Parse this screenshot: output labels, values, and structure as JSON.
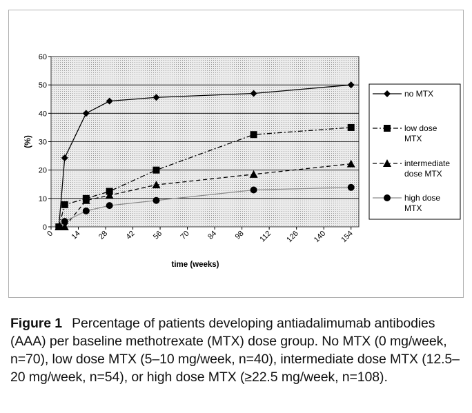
{
  "chart_data": {
    "type": "line",
    "title": "",
    "xlabel": "time (weeks)",
    "ylabel": "(%)",
    "xlim": [
      0,
      158
    ],
    "ylim": [
      0,
      60
    ],
    "xticks": [
      0,
      14,
      28,
      42,
      56,
      70,
      84,
      98,
      112,
      126,
      140,
      154
    ],
    "yticks": [
      0,
      10,
      20,
      30,
      40,
      50,
      60
    ],
    "grid": "dotted",
    "legend_position": "right",
    "series": [
      {
        "name": "no MTX",
        "legend_lines": [
          "no MTX"
        ],
        "marker": "diamond",
        "line_style": "solid",
        "x": [
          4,
          7,
          18,
          30,
          54,
          104,
          154
        ],
        "y": [
          0,
          24.3,
          40,
          44.3,
          45.6,
          47,
          50
        ]
      },
      {
        "name": "low dose MTX",
        "legend_lines": [
          "low dose",
          "MTX"
        ],
        "marker": "square",
        "line_style": "dash-dot",
        "x": [
          4,
          7,
          18,
          30,
          54,
          104,
          154
        ],
        "y": [
          0,
          7.8,
          10,
          12.5,
          20,
          32.5,
          35
        ]
      },
      {
        "name": "intermediate dose MTX",
        "legend_lines": [
          "intermediate",
          "dose MTX"
        ],
        "marker": "triangle",
        "line_style": "dashed",
        "x": [
          4,
          7,
          18,
          30,
          54,
          104,
          154
        ],
        "y": [
          0,
          0,
          9.3,
          11.1,
          14.8,
          18.5,
          22.2
        ]
      },
      {
        "name": "high dose MTX",
        "legend_lines": [
          "high dose",
          "MTX"
        ],
        "marker": "circle",
        "line_style": "solid-gray",
        "x": [
          4,
          7,
          18,
          30,
          54,
          104,
          154
        ],
        "y": [
          0,
          1.9,
          5.6,
          7.5,
          9.3,
          13,
          13.9
        ]
      }
    ]
  },
  "caption": {
    "label": "Figure 1",
    "text": "Percentage of patients developing antiadalimumab antibodies (AAA) per baseline methotrexate (MTX) dose group. No MTX (0 mg/week, n=70), low dose MTX (5–10 mg/week, n=40), intermediate dose MTX (12.5–20 mg/week, n=54), or high dose MTX (≥22.5 mg/week, n=108)."
  },
  "colors": {
    "plot_background": "#e4e4e4",
    "series": "#000000",
    "high_dose_line": "#8a8a8a"
  }
}
